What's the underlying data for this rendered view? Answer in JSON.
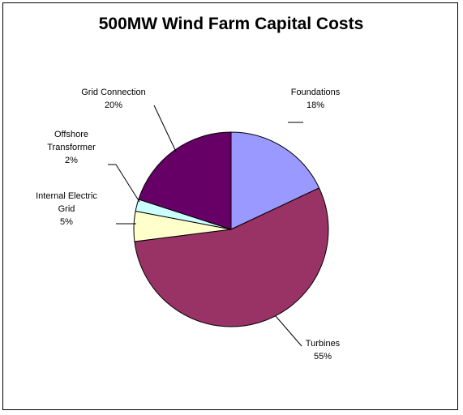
{
  "chart_data": {
    "type": "pie",
    "title": "500MW Wind Farm Capital Costs",
    "start_angle_deg": 0,
    "direction": "clockwise",
    "slices": [
      {
        "label_lines": [
          "Foundations"
        ],
        "value": 18,
        "value_text": "18%",
        "color": "#9999ff"
      },
      {
        "label_lines": [
          "Turbines"
        ],
        "value": 55,
        "value_text": "55%",
        "color": "#993366"
      },
      {
        "label_lines": [
          "Internal Electric",
          "Grid"
        ],
        "value": 5,
        "value_text": "5%",
        "color": "#ffffcc"
      },
      {
        "label_lines": [
          "Offshore",
          "Transformer"
        ],
        "value": 2,
        "value_text": "2%",
        "color": "#ccffff"
      },
      {
        "label_lines": [
          "Grid Connection"
        ],
        "value": 20,
        "value_text": "20%",
        "color": "#660066"
      }
    ]
  }
}
